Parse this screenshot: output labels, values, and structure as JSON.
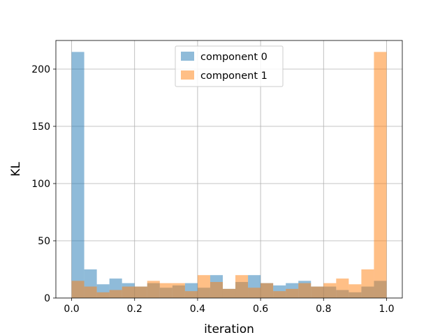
{
  "chart_data": {
    "type": "bar",
    "title": "",
    "xlabel": "iteration",
    "ylabel": "KL",
    "xlim": [
      -0.05,
      1.05
    ],
    "ylim": [
      0,
      225
    ],
    "xticks": [
      "0.0",
      "0.2",
      "0.4",
      "0.6",
      "0.8",
      "1.0"
    ],
    "yticks": [
      "0",
      "50",
      "100",
      "150",
      "200"
    ],
    "grid": true,
    "legend_position": "top-center",
    "bin_edges": [
      0.0,
      0.04,
      0.08,
      0.12,
      0.16,
      0.2,
      0.24,
      0.28,
      0.32,
      0.36,
      0.4,
      0.44,
      0.48,
      0.52,
      0.56,
      0.6,
      0.64,
      0.68,
      0.72,
      0.76,
      0.8,
      0.84,
      0.88,
      0.92,
      0.96,
      1.0
    ],
    "series": [
      {
        "name": "component 0",
        "color": "#1f77b4",
        "alpha": 0.5,
        "values": [
          215,
          25,
          12,
          17,
          13,
          10,
          13,
          9,
          11,
          13,
          9,
          20,
          8,
          14,
          20,
          13,
          11,
          13,
          15,
          10,
          10,
          7,
          5,
          10,
          15
        ]
      },
      {
        "name": "component 1",
        "color": "#ff7f0e",
        "alpha": 0.5,
        "values": [
          15,
          10,
          5,
          7,
          10,
          10,
          15,
          13,
          13,
          6,
          20,
          14,
          8,
          20,
          9,
          13,
          6,
          8,
          13,
          10,
          13,
          17,
          12,
          25,
          215
        ]
      }
    ]
  }
}
